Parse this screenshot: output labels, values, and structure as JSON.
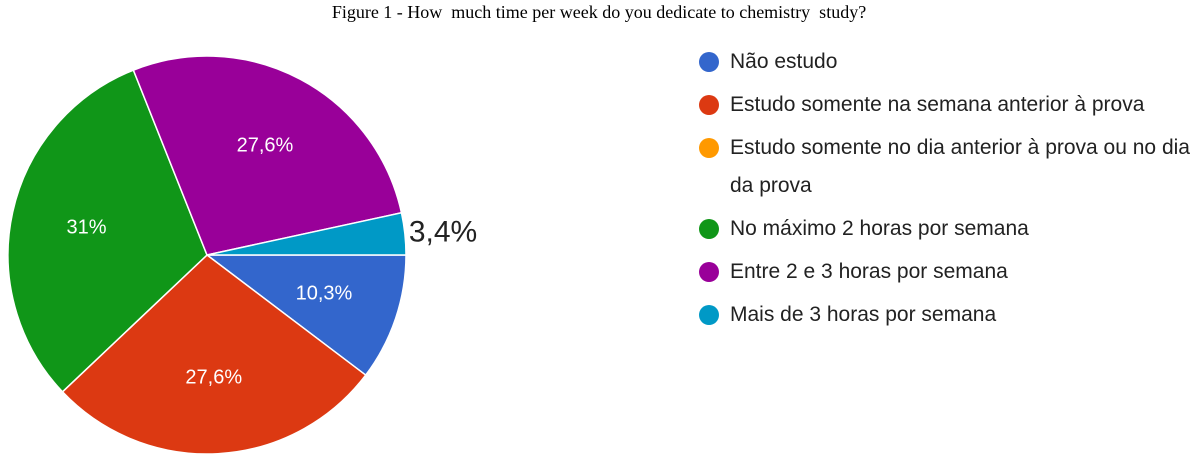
{
  "chart_data": {
    "type": "pie",
    "title": "Figure 1 - How  much time per week do you dedicate to chemistry  study?",
    "categories": [
      "Não estudo",
      "Estudo somente na semana anterior à prova",
      "Estudo somente no dia anterior à prova ou no dia da prova",
      "No máximo 2 horas por semana",
      "Entre 2 e 3 horas por semana",
      "Mais de 3 horas por semana"
    ],
    "values": [
      10.3,
      27.6,
      0,
      31,
      27.6,
      3.4
    ],
    "value_labels": [
      "10,3%",
      "27,6%",
      null,
      "31%",
      "27,6%",
      "3,4%"
    ],
    "colors": [
      "#3366cc",
      "#dc3912",
      "#ff9900",
      "#109618",
      "#990099",
      "#0099c6"
    ],
    "legend": "right"
  }
}
